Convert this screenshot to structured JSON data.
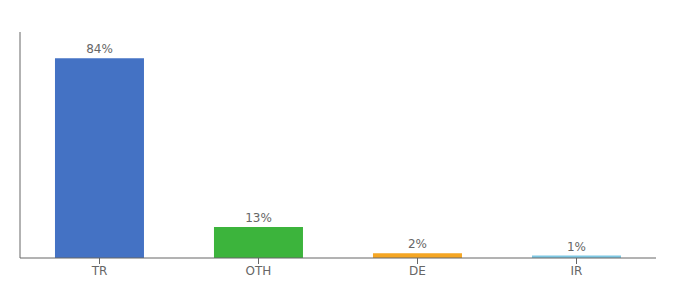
{
  "chart_data": {
    "type": "bar",
    "categories": [
      "TR",
      "OTH",
      "DE",
      "IR"
    ],
    "values": [
      84,
      13,
      2,
      1
    ],
    "value_labels": [
      "84%",
      "13%",
      "2%",
      "1%"
    ],
    "colors": [
      "#4472c4",
      "#3cb43c",
      "#f5a623",
      "#7ec8e3"
    ],
    "ylim": [
      0,
      95
    ],
    "tick_labels": "x",
    "grid": false,
    "data_labels": true
  }
}
